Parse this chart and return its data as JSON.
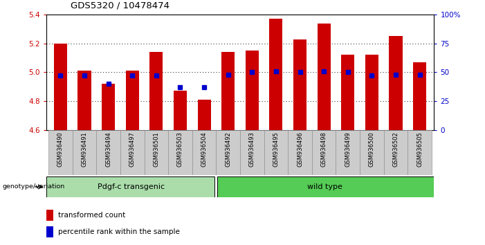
{
  "title": "GDS5320 / 10478474",
  "categories": [
    "GSM936490",
    "GSM936491",
    "GSM936494",
    "GSM936497",
    "GSM936501",
    "GSM936503",
    "GSM936504",
    "GSM936492",
    "GSM936493",
    "GSM936495",
    "GSM936496",
    "GSM936498",
    "GSM936499",
    "GSM936500",
    "GSM936502",
    "GSM936505"
  ],
  "red_values": [
    5.2,
    5.01,
    4.92,
    5.01,
    5.14,
    4.87,
    4.81,
    5.14,
    5.15,
    5.37,
    5.23,
    5.34,
    5.12,
    5.12,
    5.25,
    5.07
  ],
  "blue_percentiles": [
    47,
    47,
    40,
    47,
    47,
    37,
    37,
    48,
    50,
    51,
    50,
    51,
    50,
    47,
    48,
    48
  ],
  "group1_label": "Pdgf-c transgenic",
  "group2_label": "wild type",
  "group1_count": 7,
  "group2_count": 9,
  "ylim": [
    4.6,
    5.4
  ],
  "y_ticks": [
    4.6,
    4.8,
    5.0,
    5.2,
    5.4
  ],
  "right_yticks": [
    0,
    25,
    50,
    75,
    100
  ],
  "right_ylim": [
    0,
    100
  ],
  "bar_color": "#cc0000",
  "dot_color": "#0000cc",
  "group1_bg": "#aaddaa",
  "group2_bg": "#55cc55",
  "left_axis_color": "#cc0000",
  "right_axis_color": "#0000cc",
  "legend_items": [
    "transformed count",
    "percentile rank within the sample"
  ],
  "tick_label_bg": "#cccccc",
  "bar_width": 0.55
}
